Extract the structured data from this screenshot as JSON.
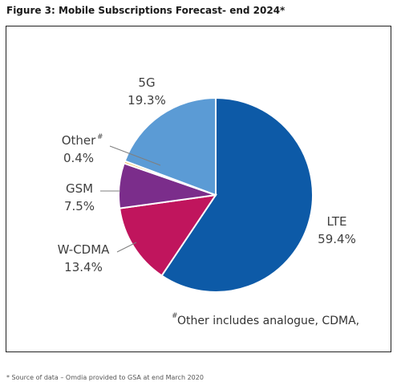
{
  "figure": {
    "title": "Figure 3: Mobile Subscriptions Forecast- end 2024*",
    "footnote": "* Source of data – Omdia provided to GSA at end March 2020"
  },
  "chart_data": {
    "type": "pie",
    "slices": [
      {
        "name": "LTE",
        "value": 59.4,
        "label": "59.4%",
        "color": "#0d5aa7"
      },
      {
        "name": "W-CDMA",
        "value": 13.4,
        "label": "13.4%",
        "color": "#c0155d"
      },
      {
        "name": "GSM",
        "value": 7.5,
        "label": "7.5%",
        "color": "#7b2d8b"
      },
      {
        "name": "Other",
        "value": 0.4,
        "label": "0.4%",
        "color": "#f0c060"
      },
      {
        "name": "5G",
        "value": 19.3,
        "label": "19.3%",
        "color": "#5b9bd5"
      }
    ],
    "note": "Other includes analogue, CDMA,",
    "note_mark": "#",
    "start": "12 o'clock, clockwise"
  }
}
